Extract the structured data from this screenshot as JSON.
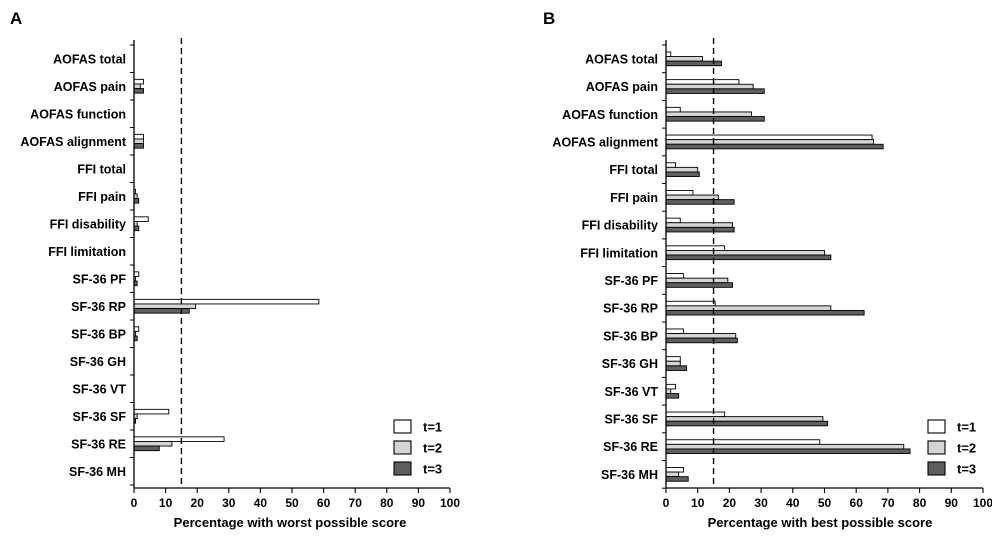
{
  "colors": {
    "t1": "#ffffff",
    "t2": "#d4d4d4",
    "t3": "#5f5f5f",
    "stroke": "#000000"
  },
  "chart_data": [
    {
      "type": "bar",
      "orientation": "horizontal",
      "panel": "A",
      "xlabel": "Percentage with worst possible score",
      "xlim": [
        0,
        100
      ],
      "xticks": [
        0,
        10,
        20,
        30,
        40,
        50,
        60,
        70,
        80,
        90,
        100
      ],
      "reference_line": 15,
      "legend_position": "bottom-right",
      "categories": [
        "AOFAS total",
        "AOFAS pain",
        "AOFAS function",
        "AOFAS alignment",
        "FFI total",
        "FFI pain",
        "FFI disability",
        "FFI limitation",
        "SF-36 PF",
        "SF-36 RP",
        "SF-36 BP",
        "SF-36 GH",
        "SF-36 VT",
        "SF-36 SF",
        "SF-36 RE",
        "SF-36 MH"
      ],
      "series": [
        {
          "name": "t=1",
          "values": [
            0,
            3,
            0,
            3,
            0,
            0.5,
            4.5,
            0,
            1.5,
            58.5,
            1.5,
            0,
            0,
            11,
            28.5,
            0
          ]
        },
        {
          "name": "t=2",
          "values": [
            0,
            2,
            0,
            3,
            0,
            1,
            1,
            0,
            0.5,
            19.5,
            0.5,
            0,
            0,
            1,
            12,
            0
          ]
        },
        {
          "name": "t=3",
          "values": [
            0,
            3,
            0,
            3,
            0,
            1.5,
            1.5,
            0,
            1,
            17.5,
            1,
            0,
            0,
            0.5,
            8,
            0
          ]
        }
      ]
    },
    {
      "type": "bar",
      "orientation": "horizontal",
      "panel": "B",
      "xlabel": "Percentage with best possible score",
      "xlim": [
        0,
        100
      ],
      "xticks": [
        0,
        10,
        20,
        30,
        40,
        50,
        60,
        70,
        80,
        90,
        100
      ],
      "reference_line": 15,
      "legend_position": "bottom-right",
      "categories": [
        "AOFAS total",
        "AOFAS pain",
        "AOFAS function",
        "AOFAS alignment",
        "FFI total",
        "FFI pain",
        "FFI disability",
        "FFI limitation",
        "SF-36 PF",
        "SF-36 RP",
        "SF-36 BP",
        "SF-36 GH",
        "SF-36 VT",
        "SF-36 SF",
        "SF-36 RE",
        "SF-36 MH"
      ],
      "series": [
        {
          "name": "t=1",
          "values": [
            1.5,
            23,
            4.5,
            65,
            3,
            8.5,
            4.5,
            18.5,
            5.5,
            15.5,
            5.5,
            4.5,
            3,
            18.5,
            48.5,
            5.5
          ]
        },
        {
          "name": "t=2",
          "values": [
            11.5,
            27.5,
            27,
            65.5,
            10,
            16.5,
            21,
            50,
            19.5,
            52,
            22,
            4.5,
            1.5,
            49.5,
            75,
            4
          ]
        },
        {
          "name": "t=3",
          "values": [
            17.5,
            31,
            31,
            68.5,
            10.5,
            21.5,
            21.5,
            52,
            21,
            62.5,
            22.5,
            6.5,
            4,
            51,
            77,
            7
          ]
        }
      ]
    }
  ]
}
